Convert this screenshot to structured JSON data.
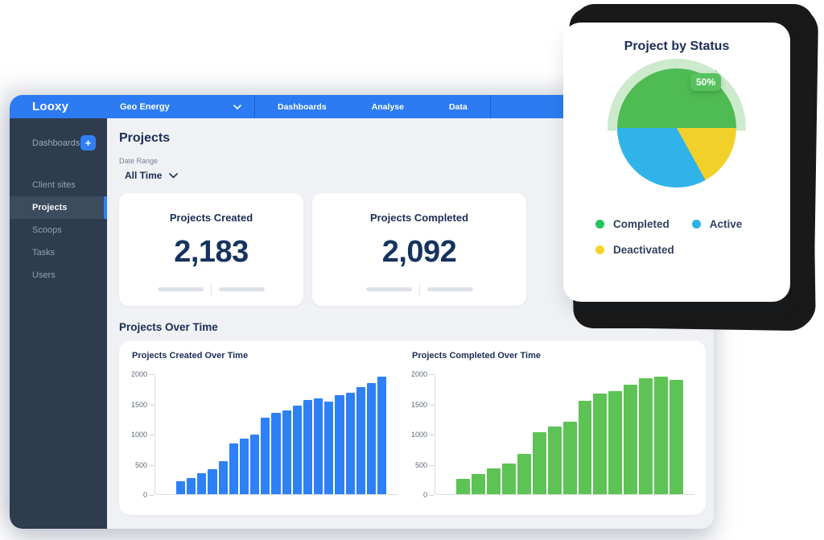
{
  "app": {
    "logo": "Looxy"
  },
  "topnav": {
    "client_selector": "Geo Energy",
    "items": [
      {
        "label": "Dashboards"
      },
      {
        "label": "Analyse"
      },
      {
        "label": "Data"
      }
    ]
  },
  "sidebar": {
    "section_label": "Dashboards",
    "add_button": "+",
    "items": [
      {
        "label": "Client sites"
      },
      {
        "label": "Projects"
      },
      {
        "label": "Scoops"
      },
      {
        "label": "Tasks"
      },
      {
        "label": "Users"
      }
    ],
    "active_item": "Projects"
  },
  "main": {
    "title": "Projects",
    "date_range_label": "Date Range",
    "date_range_value": "All Time",
    "section_title": "Projects Over Time"
  },
  "stats": {
    "cards": [
      {
        "title": "Projects Created",
        "value": "2,183"
      },
      {
        "title": "Projects Completed",
        "value": "2,092"
      }
    ]
  },
  "status_card": {
    "title": "Project by Status",
    "badge": "50%"
  },
  "colors": {
    "accent_blue": "#2c7bf2",
    "sidebar_navy": "#2d3c4e",
    "heading_navy": "#1b2d55",
    "window_bg": "#eff1f4"
  },
  "chart_data": [
    {
      "type": "bar",
      "title": "Projects Created Over Time",
      "xlabel": "",
      "ylabel": "",
      "ylim": [
        0,
        2000
      ],
      "yticks": [
        0,
        500,
        1000,
        1500,
        2000
      ],
      "grid": false,
      "color": "#2e80f6",
      "values": [
        210,
        270,
        350,
        415,
        545,
        845,
        920,
        990,
        1270,
        1360,
        1395,
        1480,
        1575,
        1595,
        1550,
        1655,
        1685,
        1780,
        1855,
        1965
      ]
    },
    {
      "type": "bar",
      "title": "Projects Completed Over Time",
      "xlabel": "",
      "ylabel": "",
      "ylim": [
        0,
        2000
      ],
      "yticks": [
        0,
        500,
        1000,
        1500,
        2000
      ],
      "grid": false,
      "color": "#5dc355",
      "values": [
        260,
        330,
        430,
        510,
        670,
        1040,
        1130,
        1210,
        1560,
        1680,
        1720,
        1820,
        1930,
        1955,
        1900
      ]
    },
    {
      "type": "pie",
      "title": "Project by Status",
      "badge_label": "50%",
      "start_deg": 270,
      "draw_order": [
        "Completed",
        "Deactivated",
        "Active"
      ],
      "legend_position": "bottom",
      "slices": [
        {
          "label": "Completed",
          "pct": 50,
          "color": "#4fbb53",
          "dot_color": "#22c55e"
        },
        {
          "label": "Active",
          "pct": 33,
          "color": "#2fb3e8",
          "dot_color": "#29b2e8"
        },
        {
          "label": "Deactivated",
          "pct": 17,
          "color": "#f2d02a",
          "dot_color": "#f5d327"
        }
      ]
    }
  ]
}
